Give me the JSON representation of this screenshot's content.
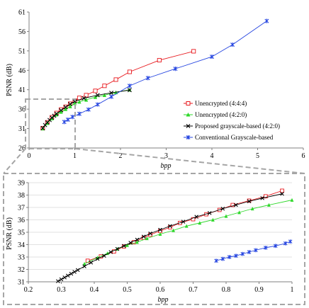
{
  "chart_data": [
    {
      "type": "line",
      "xlabel": "bpp",
      "ylabel": "PSNR (dB)",
      "xlim": [
        0,
        6
      ],
      "ylim": [
        26,
        61
      ],
      "xticks": [
        "0",
        "1",
        "2",
        "3",
        "4",
        "5",
        "6"
      ],
      "yticks": [
        "26",
        "31",
        "36",
        "41",
        "46",
        "51",
        "56",
        "61"
      ],
      "legend_position": "right",
      "series": [
        {
          "name": "Unencrypted (4:4:4)",
          "color": "#e8191e",
          "marker": "square-open",
          "points": [
            [
              0.3,
              31.1
            ],
            [
              0.4,
              32.6
            ],
            [
              0.5,
              33.9
            ],
            [
              0.6,
              35.0
            ],
            [
              0.7,
              35.9
            ],
            [
              0.8,
              36.6
            ],
            [
              0.9,
              37.4
            ],
            [
              1.0,
              38.2
            ],
            [
              1.1,
              38.9
            ],
            [
              1.25,
              39.6
            ],
            [
              1.45,
              40.7
            ],
            [
              1.65,
              42.0
            ],
            [
              1.9,
              43.6
            ],
            [
              2.2,
              45.6
            ],
            [
              2.85,
              48.6
            ],
            [
              3.6,
              50.9
            ]
          ]
        },
        {
          "name": "Unencrypted (4:2:0)",
          "color": "#2ed82a",
          "marker": "triangle",
          "points": [
            [
              0.3,
              31.0
            ],
            [
              0.4,
              32.4
            ],
            [
              0.5,
              33.6
            ],
            [
              0.6,
              34.6
            ],
            [
              0.7,
              35.3
            ],
            [
              0.8,
              36.0
            ],
            [
              0.9,
              36.7
            ],
            [
              1.0,
              37.5
            ],
            [
              1.1,
              37.9
            ],
            [
              1.25,
              38.4
            ],
            [
              1.45,
              39.1
            ],
            [
              1.65,
              39.6
            ],
            [
              1.9,
              40.3
            ],
            [
              2.2,
              41.0
            ]
          ]
        },
        {
          "name": "Proposed grayscale-based (4:2:0)",
          "color": "#000000",
          "marker": "cross",
          "points": [
            [
              0.3,
              31.1
            ],
            [
              0.35,
              31.9
            ],
            [
              0.4,
              32.6
            ],
            [
              0.45,
              33.2
            ],
            [
              0.5,
              33.8
            ],
            [
              0.55,
              34.3
            ],
            [
              0.6,
              34.8
            ],
            [
              0.7,
              35.7
            ],
            [
              0.8,
              36.5
            ],
            [
              0.9,
              37.3
            ],
            [
              1.0,
              38.0
            ],
            [
              1.2,
              38.8
            ],
            [
              1.5,
              39.6
            ],
            [
              1.8,
              40.2
            ],
            [
              2.2,
              40.9
            ]
          ]
        },
        {
          "name": "Conventional Grayscale-based",
          "color": "#2444e0",
          "marker": "asterisk",
          "points": [
            [
              0.77,
              32.7
            ],
            [
              0.85,
              33.3
            ],
            [
              0.95,
              34.0
            ],
            [
              1.1,
              34.8
            ],
            [
              1.3,
              35.9
            ],
            [
              1.5,
              37.2
            ],
            [
              1.8,
              39.2
            ],
            [
              2.2,
              42.0
            ],
            [
              2.6,
              44.0
            ],
            [
              3.2,
              46.4
            ],
            [
              4.0,
              49.5
            ],
            [
              4.45,
              52.6
            ],
            [
              5.2,
              58.7
            ]
          ]
        }
      ]
    },
    {
      "type": "line",
      "xlabel": "bpp",
      "ylabel": "PSNR (dB)",
      "xlim": [
        0.2,
        1.0
      ],
      "ylim": [
        31,
        39
      ],
      "xticks": [
        "0.2",
        "0.3",
        "0.4",
        "0.5",
        "0.6",
        "0.7",
        "0.8",
        "0.9",
        "1"
      ],
      "yticks": [
        "31",
        "32",
        "33",
        "34",
        "35",
        "36",
        "37",
        "38",
        "39"
      ],
      "series": [
        {
          "name": "Unencrypted (4:4:4)",
          "color": "#e8191e",
          "marker": "square-open",
          "points": [
            [
              0.38,
              32.7
            ],
            [
              0.42,
              33.05
            ],
            [
              0.46,
              33.45
            ],
            [
              0.49,
              33.85
            ],
            [
              0.52,
              34.2
            ],
            [
              0.55,
              34.55
            ],
            [
              0.57,
              34.8
            ],
            [
              0.6,
              35.1
            ],
            [
              0.63,
              35.4
            ],
            [
              0.66,
              35.75
            ],
            [
              0.7,
              36.05
            ],
            [
              0.74,
              36.45
            ],
            [
              0.78,
              36.8
            ],
            [
              0.82,
              37.2
            ],
            [
              0.87,
              37.55
            ],
            [
              0.92,
              37.9
            ],
            [
              0.97,
              38.35
            ]
          ]
        },
        {
          "name": "Unencrypted (4:2:0)",
          "color": "#2ed82a",
          "marker": "triangle",
          "points": [
            [
              0.37,
              32.45
            ],
            [
              0.41,
              32.95
            ],
            [
              0.44,
              33.3
            ],
            [
              0.47,
              33.65
            ],
            [
              0.5,
              33.95
            ],
            [
              0.53,
              34.2
            ],
            [
              0.56,
              34.5
            ],
            [
              0.6,
              34.85
            ],
            [
              0.64,
              35.15
            ],
            [
              0.68,
              35.5
            ],
            [
              0.72,
              35.75
            ],
            [
              0.76,
              36.0
            ],
            [
              0.8,
              36.3
            ],
            [
              0.84,
              36.6
            ],
            [
              0.88,
              36.9
            ],
            [
              0.93,
              37.2
            ],
            [
              1.0,
              37.6
            ]
          ]
        },
        {
          "name": "Proposed grayscale-based (4:2:0)",
          "color": "#000000",
          "marker": "cross",
          "points": [
            [
              0.29,
              31.05
            ],
            [
              0.3,
              31.2
            ],
            [
              0.31,
              31.35
            ],
            [
              0.32,
              31.5
            ],
            [
              0.33,
              31.65
            ],
            [
              0.34,
              31.8
            ],
            [
              0.35,
              31.95
            ],
            [
              0.37,
              32.25
            ],
            [
              0.39,
              32.55
            ],
            [
              0.41,
              32.85
            ],
            [
              0.43,
              33.1
            ],
            [
              0.45,
              33.4
            ],
            [
              0.47,
              33.65
            ],
            [
              0.49,
              33.9
            ],
            [
              0.51,
              34.15
            ],
            [
              0.53,
              34.4
            ],
            [
              0.55,
              34.65
            ],
            [
              0.57,
              34.9
            ],
            [
              0.6,
              35.2
            ],
            [
              0.63,
              35.5
            ],
            [
              0.67,
              35.85
            ],
            [
              0.71,
              36.25
            ],
            [
              0.75,
              36.55
            ],
            [
              0.79,
              36.9
            ],
            [
              0.83,
              37.2
            ],
            [
              0.87,
              37.5
            ],
            [
              0.91,
              37.75
            ],
            [
              0.97,
              38.1
            ]
          ]
        },
        {
          "name": "Conventional Grayscale-based",
          "color": "#2444e0",
          "marker": "asterisk",
          "points": [
            [
              0.77,
              32.7
            ],
            [
              0.79,
              32.85
            ],
            [
              0.81,
              33.0
            ],
            [
              0.83,
              33.1
            ],
            [
              0.85,
              33.25
            ],
            [
              0.87,
              33.4
            ],
            [
              0.89,
              33.55
            ],
            [
              0.92,
              33.75
            ],
            [
              0.95,
              33.9
            ],
            [
              0.98,
              34.1
            ],
            [
              0.995,
              34.25
            ]
          ]
        }
      ]
    }
  ]
}
